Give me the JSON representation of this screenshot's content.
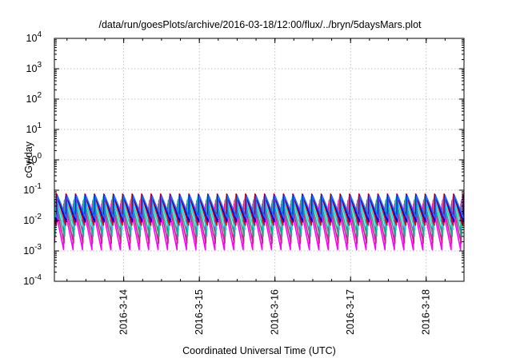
{
  "chart_data": {
    "type": "line",
    "title": "/data/run/goesPlots/archive/2016-03-18/12:00/flux/../bryn/5daysMars.plot",
    "xlabel": "Coordinated Universal Time (UTC)",
    "ylabel": "cGy/day",
    "yscale": "log",
    "ylim": [
      0.0001,
      10000
    ],
    "xlim": [
      "2016-03-13 02:00",
      "2016-03-18 12:00"
    ],
    "x_tick_labels": [
      "2016-3-14",
      "2016-3-15",
      "2016-3-16",
      "2016-3-17",
      "2016-3-18"
    ],
    "y_tick_labels": [
      {
        "base": "10",
        "exp": "-4"
      },
      {
        "base": "10",
        "exp": "-3"
      },
      {
        "base": "10",
        "exp": "-2"
      },
      {
        "base": "10",
        "exp": "-1"
      },
      {
        "base": "10",
        "exp": "0"
      },
      {
        "base": "10",
        "exp": "1"
      },
      {
        "base": "10",
        "exp": "2"
      },
      {
        "base": "10",
        "exp": "3"
      },
      {
        "base": "10",
        "exp": "4"
      }
    ],
    "grid": true,
    "sawtooth_period_hours": 3,
    "series": [
      {
        "color": "#ff00ff",
        "peak": 0.035,
        "trough": 0.0011
      },
      {
        "color": "#cc2288",
        "peak": 0.045,
        "trough": 0.0018
      },
      {
        "color": "#22aa88",
        "peak": 0.05,
        "trough": 0.003
      },
      {
        "color": "#00dddd",
        "peak": 0.06,
        "trough": 0.005
      },
      {
        "color": "#ff0000",
        "peak": 0.075,
        "trough": 0.007
      },
      {
        "color": "#0000cc",
        "peak": 0.07,
        "trough": 0.009
      },
      {
        "color": "#2266ff",
        "peak": 0.065,
        "trough": 0.012
      }
    ]
  }
}
